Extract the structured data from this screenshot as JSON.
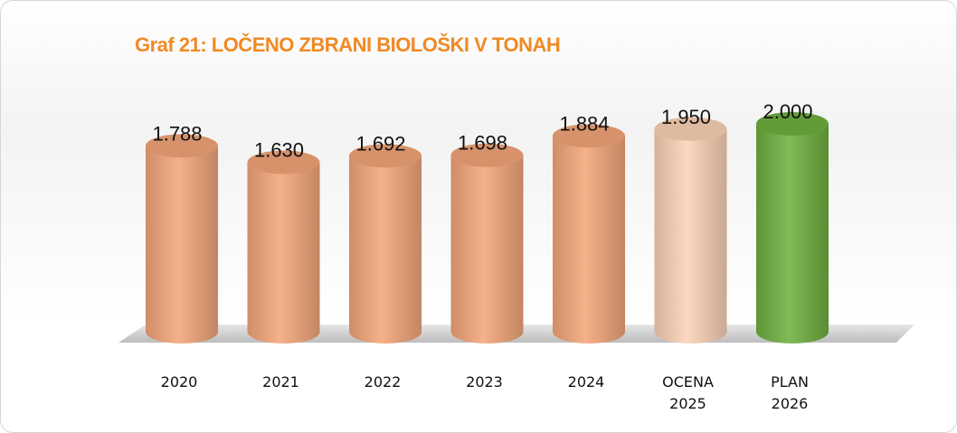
{
  "chart_data": {
    "type": "bar",
    "title": "Graf 21: LOČENO ZBRANI BIOLOŠKI V TONAH",
    "categories": [
      "2020",
      "2021",
      "2022",
      "2023",
      "2024",
      "OCENA 2025",
      "PLAN 2026"
    ],
    "values": [
      1788,
      1630,
      1692,
      1698,
      1884,
      1950,
      2000
    ],
    "value_labels": [
      "1.788",
      "1.630",
      "1.692",
      "1.698",
      "1.884",
      "1.950",
      "2.000"
    ],
    "colors": [
      "#f4a67a",
      "#f4a67a",
      "#f4a67a",
      "#f4a67a",
      "#f4a67a",
      "#fbd3b6",
      "#6fb13f"
    ],
    "ylim": [
      0,
      2200
    ]
  }
}
